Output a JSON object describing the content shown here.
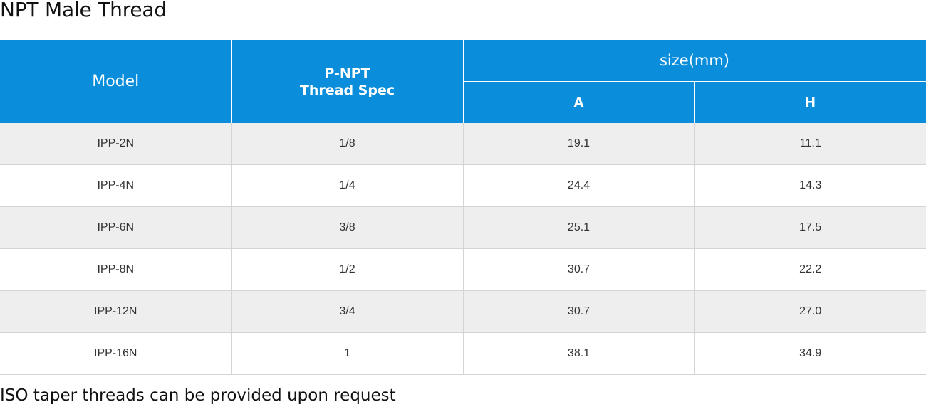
{
  "page": {
    "title": "NPT Male Thread",
    "footnote": "ISO taper threads can be provided upon request"
  },
  "table": {
    "headers": {
      "model": "Model",
      "thread_spec_line1": "P-NPT",
      "thread_spec_line2": "Thread Spec",
      "size_group": "size(mm)",
      "a": "A",
      "h": "H"
    },
    "rows": [
      {
        "model": "IPP-2N",
        "thread": "1/8",
        "a": "19.1",
        "h": "11.1"
      },
      {
        "model": "IPP-4N",
        "thread": "1/4",
        "a": "24.4",
        "h": "14.3"
      },
      {
        "model": "IPP-6N",
        "thread": "3/8",
        "a": "25.1",
        "h": "17.5"
      },
      {
        "model": "IPP-8N",
        "thread": "1/2",
        "a": "30.7",
        "h": "22.2"
      },
      {
        "model": "IPP-12N",
        "thread": "3/4",
        "a": "30.7",
        "h": "27.0"
      },
      {
        "model": "IPP-16N",
        "thread": "1",
        "a": "38.1",
        "h": "34.9"
      }
    ]
  },
  "colors": {
    "header_background": "#0a8edb",
    "header_text": "#ffffff",
    "row_alt_background": "#eeeeee",
    "grid_line": "#d4d4d4"
  }
}
